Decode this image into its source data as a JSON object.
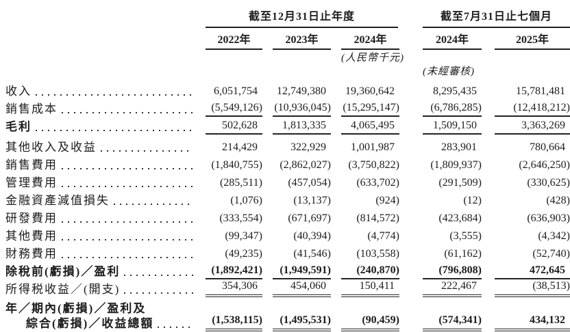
{
  "table": {
    "unit_note": "(人民幣千元)",
    "unaudited_note": "(未經審核)",
    "col_groups": [
      {
        "title": "截至12月31日止年度",
        "cols": [
          "2022年",
          "2023年",
          "2024年"
        ]
      },
      {
        "title": "截至7月31日止七個月",
        "cols": [
          "2024年",
          "2025年"
        ]
      }
    ],
    "rows": [
      {
        "label": "收入",
        "values": [
          "6,051,754",
          "12,749,380",
          "19,360,642",
          "8,295,435",
          "15,781,481"
        ]
      },
      {
        "label": "銷售成本",
        "values": [
          "(5,549,126)",
          "(10,936,045)",
          "(15,295,147)",
          "(6,786,285)",
          "(12,418,212)"
        ]
      },
      {
        "label": "毛利",
        "values": [
          "502,628",
          "1,813,335",
          "4,065,495",
          "1,509,150",
          "3,363,269"
        ]
      },
      {
        "label": "其他收入及收益",
        "values": [
          "214,429",
          "322,929",
          "1,001,987",
          "283,901",
          "780,664"
        ]
      },
      {
        "label": "銷售費用",
        "values": [
          "(1,840,755)",
          "(2,862,027)",
          "(3,750,822)",
          "(1,809,937)",
          "(2,646,250)"
        ]
      },
      {
        "label": "管理費用",
        "values": [
          "(285,511)",
          "(457,054)",
          "(633,702)",
          "(291,509)",
          "(330,625)"
        ]
      },
      {
        "label": "金融資產減值損失",
        "values": [
          "(1,076)",
          "(13,137)",
          "(924)",
          "(12)",
          "(428)"
        ]
      },
      {
        "label": "研發費用",
        "values": [
          "(333,554)",
          "(671,697)",
          "(814,572)",
          "(423,684)",
          "(636,903)"
        ]
      },
      {
        "label": "其他費用",
        "values": [
          "(99,347)",
          "(40,394)",
          "(4,774)",
          "(3,555)",
          "(4,342)"
        ]
      },
      {
        "label": "財務費用",
        "values": [
          "(49,235)",
          "(41,546)",
          "(103,558)",
          "(61,162)",
          "(52,740)"
        ]
      },
      {
        "label": "除稅前(虧損)／盈利",
        "values": [
          "(1,892,421)",
          "(1,949,591)",
          "(240,870)",
          "(796,808)",
          "472,645"
        ]
      },
      {
        "label": "所得税收益／(開支)",
        "values": [
          "354,306",
          "454,060",
          "150,411",
          "222,467",
          "(38,513)"
        ]
      },
      {
        "label_line1": "年／期內(虧損)／盈利及",
        "label_line2": "綜合(虧損)／收益總額",
        "values": [
          "(1,538,115)",
          "(1,495,531)",
          "(90,459)",
          "(574,341)",
          "434,132"
        ]
      }
    ]
  }
}
